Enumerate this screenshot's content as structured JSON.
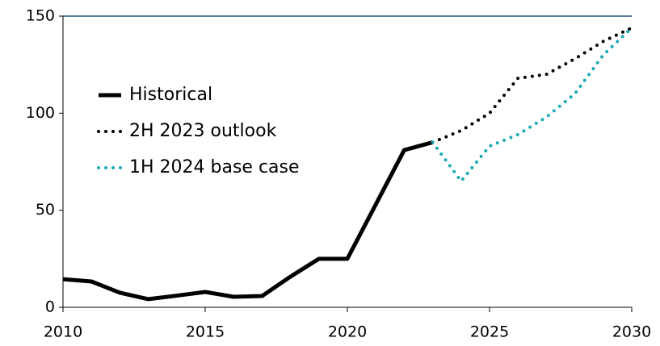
{
  "chart_data": {
    "type": "line",
    "x": [
      2010,
      2011,
      2012,
      2013,
      2014,
      2015,
      2016,
      2017,
      2018,
      2019,
      2020,
      2021,
      2022,
      2023,
      2024,
      2025,
      2026,
      2027,
      2028,
      2029,
      2030
    ],
    "series": [
      {
        "name": "Historical",
        "color": "#000000",
        "style": "solid",
        "values": [
          14.5,
          13.3,
          7.5,
          4.2,
          6,
          7.9,
          5.4,
          5.8,
          15.8,
          25,
          25,
          53,
          81,
          85,
          null,
          null,
          null,
          null,
          null,
          null,
          null
        ]
      },
      {
        "name": "2H 2023 outlook",
        "color": "#000000",
        "style": "dotted",
        "values": [
          null,
          null,
          null,
          null,
          null,
          null,
          null,
          null,
          null,
          null,
          null,
          null,
          null,
          85,
          91,
          100,
          118,
          120,
          128,
          137,
          144
        ]
      },
      {
        "name": "1H 2024 base case",
        "color": "#1aaab5",
        "style": "dotted",
        "values": [
          null,
          null,
          null,
          null,
          null,
          null,
          null,
          null,
          null,
          null,
          null,
          null,
          null,
          85,
          65,
          83,
          89,
          98,
          110,
          130,
          144
        ]
      }
    ],
    "xlim": [
      2010,
      2030
    ],
    "xticks": [
      2010,
      2015,
      2020,
      2025,
      2030
    ],
    "ylim": [
      0,
      150
    ],
    "yticks": [
      0,
      50,
      100,
      150
    ],
    "grid": false,
    "legend": "left"
  }
}
